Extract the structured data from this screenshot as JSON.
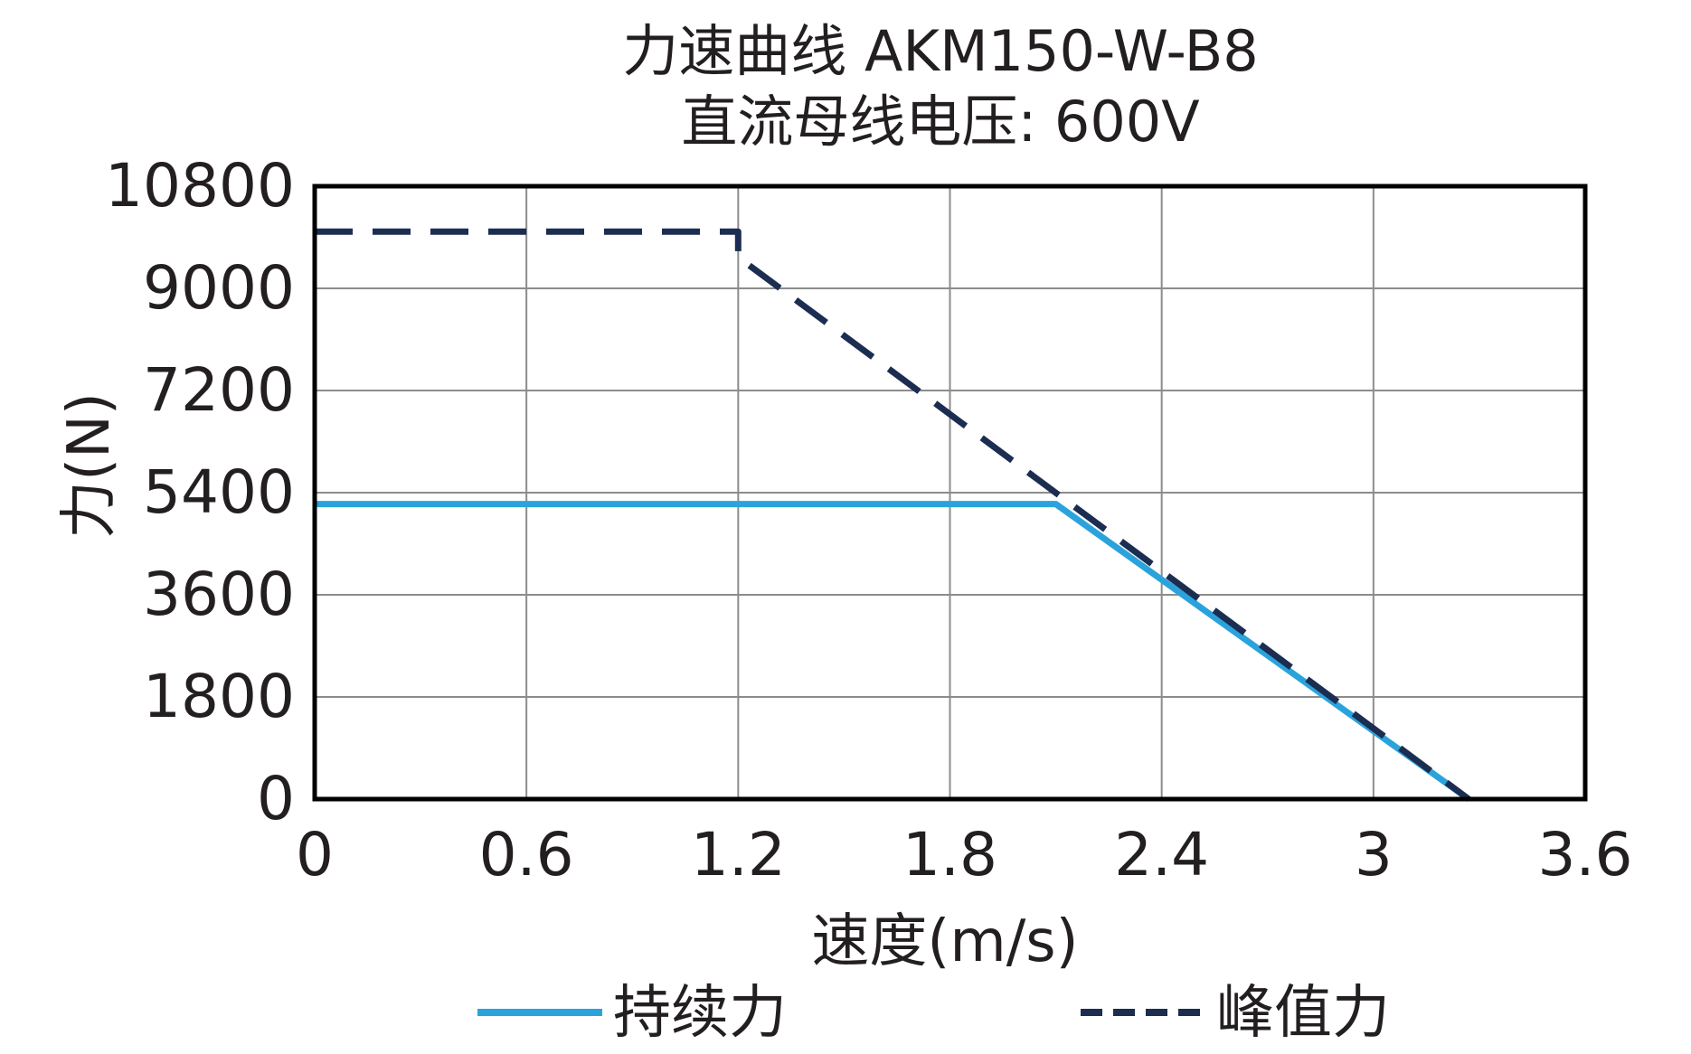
{
  "chart_data": {
    "type": "line",
    "title": "力速曲线 AKM150-W-B8",
    "subtitle": "直流母线电压: 600V",
    "xlabel": "速度(m/s)",
    "ylabel": "力(N)",
    "xlim": [
      0,
      3.6
    ],
    "ylim": [
      0,
      10800
    ],
    "xticks": [
      "0",
      "0.6",
      "1.2",
      "1.8",
      "2.4",
      "3",
      "3.6"
    ],
    "yticks": [
      "0",
      "1800",
      "3600",
      "5400",
      "7200",
      "9000",
      "10800"
    ],
    "grid": true,
    "legend_position": "bottom",
    "series": [
      {
        "name": "持续力",
        "style": "solid",
        "color": "#2aa3dc",
        "points": [
          [
            0,
            5200
          ],
          [
            2.1,
            5200
          ],
          [
            3.27,
            0
          ]
        ]
      },
      {
        "name": "峰值力",
        "style": "dashed",
        "color": "#1c2d52",
        "points": [
          [
            0,
            10000
          ],
          [
            1.2,
            10000
          ],
          [
            1.2,
            9550
          ],
          [
            3.27,
            0
          ]
        ]
      }
    ]
  }
}
